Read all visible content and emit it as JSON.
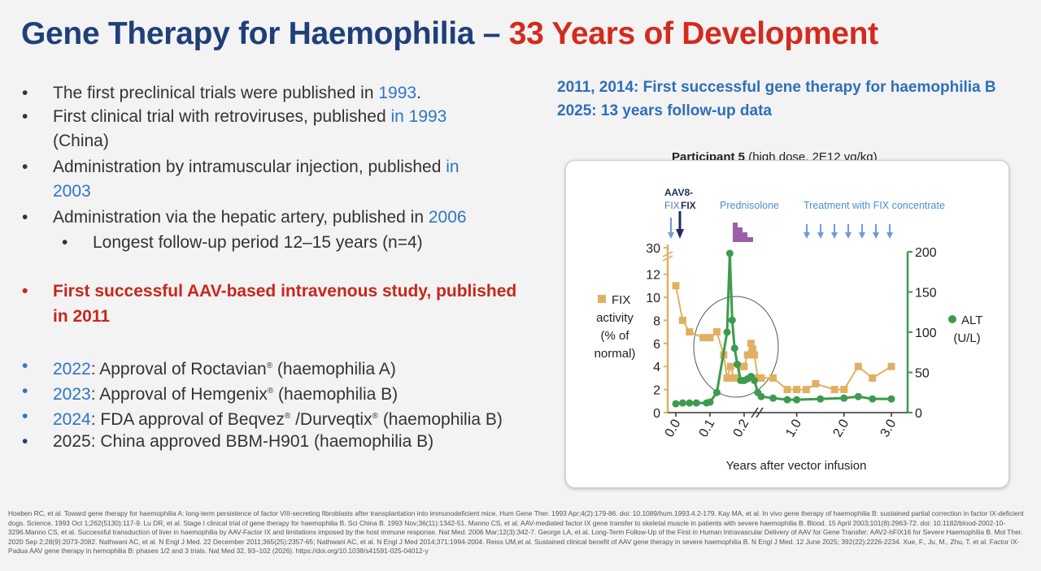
{
  "title": {
    "part1": "Gene Therapy for Haemophilia – ",
    "part2": "33 Years of Development"
  },
  "left_bullets": [
    {
      "bullet": "•",
      "pre": "The first preclinical trials were published in ",
      "hi": "1993",
      "post": "."
    },
    {
      "bullet": "•",
      "pre": "First clinical trial with retroviruses, published ",
      "hi": "in 1993",
      "line2": "(China)"
    },
    {
      "bullet": "•",
      "pre": "Administration by intramuscular injection, published ",
      "hi": "in",
      "line2hi": "2003"
    },
    {
      "bullet": "•",
      "pre": "Administration via the hepatic artery, published in ",
      "hi": "2006"
    },
    {
      "bullet": "•",
      "pre": "Longest follow-up period 12–15 years (n=4)"
    }
  ],
  "highlight_bullet": {
    "bullet": "•",
    "line1": "First successful AAV-based intravenous study, published",
    "line2": "in 2011"
  },
  "approvals": [
    {
      "bullet": "•",
      "year": "2022",
      "text": ": Approval of Roctavian",
      "sup": "®",
      "post": " (haemophilia A)"
    },
    {
      "bullet": "•",
      "year": "2023",
      "text": ": Approval of Hemgenix",
      "sup": "®",
      "post": " (haemophilia B)"
    },
    {
      "bullet": "•",
      "year": "2024",
      "text": ": FDA approval of Beqvez",
      "sup": "®",
      "mid": " /Durveqtix",
      "sup2": "®",
      "post": "  (haemophilia B)"
    },
    {
      "bullet": "•",
      "year": "",
      "text": "2025: China approved BBM-H901 (haemophilia B)"
    }
  ],
  "right_header": {
    "line1": "2011, 2014: First successful gene therapy for haemophilia B",
    "line2": "2025: 13 years follow-up data"
  },
  "figure_caption": {
    "bold": "Participant 5",
    "rest": " (high dose, 2E12 vg/kg)"
  },
  "chart_data": {
    "type": "line",
    "xlabel": "Years after vector infusion",
    "x_ticks": [
      "0.0",
      "0.1",
      "0.2",
      "1.0",
      "2.0",
      "3.0"
    ],
    "y_left": {
      "label_lines": [
        "FIX",
        "activity",
        "(% of",
        "normal)"
      ],
      "ticks": [
        0,
        2,
        4,
        6,
        8,
        10,
        12,
        30
      ]
    },
    "y_right": {
      "label_lines": [
        "ALT",
        "(U/L)"
      ],
      "ticks": [
        0,
        50,
        100,
        150,
        200
      ]
    },
    "annotations": {
      "vector": "AAV8-",
      "vector2": "FIX",
      "vector3": "FIX",
      "steroid": "Prednisolone",
      "treatment": "Treatment with FIX concentrate"
    },
    "series": [
      {
        "name": "FIX activity (% of normal)",
        "axis": "left",
        "color": "#e0b062",
        "x": [
          0.0,
          0.02,
          0.04,
          0.08,
          0.1,
          0.12,
          0.14,
          0.15,
          0.16,
          0.17,
          0.18,
          0.19,
          0.2,
          0.21,
          0.22,
          0.225,
          0.23,
          0.24,
          0.25,
          0.5,
          0.8,
          1.0,
          1.2,
          1.4,
          1.8,
          2.0,
          2.3,
          2.6,
          3.0
        ],
        "values": [
          11,
          8,
          7,
          6.5,
          6.5,
          7,
          5,
          3,
          4,
          3,
          3,
          4,
          4,
          5,
          6,
          5.5,
          5,
          3,
          3,
          3,
          2,
          2,
          2,
          2.5,
          2,
          2,
          4,
          3,
          4
        ]
      },
      {
        "name": "ALT (U/L)",
        "axis": "right",
        "color": "#3c9b4c",
        "x": [
          0.0,
          0.02,
          0.04,
          0.06,
          0.09,
          0.1,
          0.12,
          0.15,
          0.158,
          0.165,
          0.172,
          0.18,
          0.19,
          0.2,
          0.21,
          0.22,
          0.23,
          0.24,
          0.25,
          0.5,
          0.8,
          1.0,
          1.5,
          2.0,
          2.3,
          2.6,
          3.0
        ],
        "values": [
          11,
          12,
          12,
          12,
          12,
          13,
          25,
          100,
          198,
          115,
          80,
          60,
          40,
          40,
          42,
          45,
          40,
          25,
          20,
          18,
          16,
          16,
          17,
          18,
          20,
          17,
          17
        ]
      }
    ]
  },
  "references": "Hoeben RC, et al. Toward gene therapy for haemophilia A: long-term persistence of factor VIII-secreting fibroblasts after transplantation into immunodeficient mice. Hum Gene Ther. 1993 Apr;4(2):179-86. doi: 10.1089/hum.1993.4.2-179. Kay MA, et al. In vivo gene therapy of haemophilia B: sustained partial correction in factor IX-deficient dogs. Science. 1993 Oct 1;262(5130):117-9. Lu DR, et al. Stage I clinical trial of gene therapy for haemophilia B. Sci China B. 1993 Nov;36(11):1342-51. Manno CS, et al. AAV-mediated factor IX gene transfer to skeletal muscle in patients with severe haemophilia B. Blood. 15 April 2003;101(8):2963-72. doi: 10.1182/blood-2002-10-3296.Manno CS, et al. Successful transduction of liver in haemophilia by AAV-Factor IX and limitations imposed by the host immune response. Nat Med. 2006 Mar;12(3):342-7. George LA, et al. Long-Term Follow-Up of the First in Human Intravascular Delivery of AAV for Gene Transfer: AAV2-hFIX16 for Severe Haemophilia B. Mol Ther. 2020 Sep 2;28(9):2073-2082. Nathwani AC, et al. N Engl J Med. 22 December 2011;365(25):2357-65; Nathwani AC, et al. N Engl J Med 2014;371:1994-2004. Reiss UM,et al. Sustained clinical benefit of AAV gene therapy in severe haemophilia B. N Engl J Med. 12 June 2025; 392(22):2226-2234. Xue, F., Ju, M., Zhu, T. et al. Factor IX-Padua AAV gene therapy in hemophilia B: phases 1/2 and 3 trials. Nat Med 32, 93–102 (2026). https://doi.org/10.1038/s41591-025-04012-y"
}
